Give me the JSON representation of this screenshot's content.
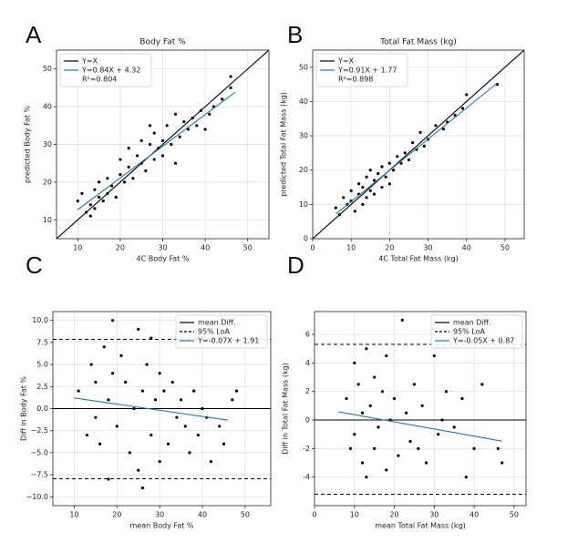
{
  "chart_data": [
    {
      "type": "scatter",
      "panel_label": "A",
      "title": "Body Fat %",
      "xlabel": "4C Body Fat %",
      "ylabel": "predicted Body Fat %",
      "xlim": [
        5,
        55
      ],
      "ylim": [
        5,
        55
      ],
      "xticks": [
        10,
        20,
        30,
        40,
        50
      ],
      "yticks": [
        10,
        20,
        30,
        40,
        50
      ],
      "grid": true,
      "legend": "upper left",
      "points": {
        "color": "#000000",
        "x": [
          10,
          11,
          12,
          13,
          13,
          14,
          14,
          15,
          15,
          16,
          17,
          17,
          18,
          19,
          20,
          20,
          21,
          22,
          22,
          23,
          24,
          25,
          25,
          26,
          27,
          27,
          28,
          28,
          29,
          30,
          30,
          31,
          32,
          33,
          33,
          34,
          35,
          36,
          37,
          38,
          39,
          40,
          41,
          42,
          44,
          46,
          46
        ],
        "y": [
          15,
          17,
          12,
          14,
          11,
          18,
          13,
          16,
          20,
          15,
          17,
          21,
          19,
          16,
          22,
          26,
          20,
          24,
          29,
          21,
          27,
          25,
          31,
          23,
          30,
          35,
          26,
          33,
          29,
          31,
          27,
          35,
          30,
          38,
          25,
          32,
          36,
          34,
          37,
          35,
          39,
          34,
          38,
          40,
          42,
          45,
          48
        ]
      },
      "hlines": [],
      "lines": [
        {
          "name": "Y=X",
          "color": "#000000",
          "dash": false,
          "x": [
            5,
            55
          ],
          "y": [
            5,
            55
          ]
        },
        {
          "name": "Y=0.84X + 4.32",
          "color": "#1f77b4",
          "dash": false,
          "x": [
            10,
            47
          ],
          "y": [
            12.7,
            43.8
          ]
        }
      ],
      "legend_text": [
        "R²=0.804"
      ]
    },
    {
      "type": "scatter",
      "panel_label": "B",
      "title": "Total Fat Mass (kg)",
      "xlabel": "4C Total Fat Mass (kg)",
      "ylabel": "predicted Total Fat Mass (kg)",
      "xlim": [
        0,
        55
      ],
      "ylim": [
        0,
        55
      ],
      "xticks": [
        0,
        10,
        20,
        30,
        40,
        50
      ],
      "yticks": [
        0,
        10,
        20,
        30,
        40,
        50
      ],
      "grid": true,
      "legend": "upper left",
      "points": {
        "color": "#000000",
        "x": [
          6,
          7,
          8,
          9,
          10,
          10,
          11,
          12,
          12,
          13,
          13,
          14,
          14,
          15,
          15,
          16,
          16,
          17,
          18,
          18,
          19,
          20,
          20,
          21,
          22,
          23,
          24,
          25,
          26,
          27,
          28,
          29,
          30,
          32,
          34,
          35,
          37,
          39,
          40,
          48
        ],
        "y": [
          9,
          7,
          12,
          10,
          11,
          14,
          8,
          13,
          16,
          10,
          15,
          12,
          18,
          14,
          20,
          13,
          17,
          19,
          15,
          21,
          18,
          16,
          22,
          20,
          24,
          22,
          25,
          23,
          28,
          26,
          31,
          27,
          29,
          33,
          32,
          34,
          36,
          38,
          42,
          45
        ]
      },
      "hlines": [],
      "lines": [
        {
          "name": "Y=X",
          "color": "#000000",
          "dash": false,
          "x": [
            0,
            55
          ],
          "y": [
            0,
            55
          ]
        },
        {
          "name": "Y=0.91X + 1.77",
          "color": "#1f77b4",
          "dash": false,
          "x": [
            6,
            48
          ],
          "y": [
            7.2,
            45.4
          ]
        }
      ],
      "legend_text": [
        "R²=0.898"
      ]
    },
    {
      "type": "scatter",
      "panel_label": "C",
      "xlabel": "mean Body Fat %",
      "ylabel": "Diff in Body Fat %",
      "xlim": [
        5,
        56
      ],
      "ylim": [
        -11,
        11
      ],
      "xticks": [
        10,
        20,
        30,
        40,
        50
      ],
      "yticks": [
        {
          "value": -10,
          "label": "−10.0"
        },
        {
          "value": -7.5,
          "label": "−7.5"
        },
        {
          "value": -5,
          "label": "−5.0"
        },
        {
          "value": -2.5,
          "label": "−2.5"
        },
        {
          "value": 0,
          "label": "0.0"
        },
        {
          "value": 2.5,
          "label": "2.5"
        },
        {
          "value": 5,
          "label": "5.0"
        },
        {
          "value": 7.5,
          "label": "7.5"
        },
        {
          "value": 10,
          "label": "10.0"
        }
      ],
      "grid": true,
      "legend": "upper right",
      "points": {
        "color": "#000000",
        "x": [
          11,
          13,
          14,
          15,
          15,
          16,
          17,
          18,
          18,
          19,
          19,
          20,
          21,
          22,
          23,
          24,
          25,
          25,
          26,
          26,
          27,
          28,
          28,
          29,
          30,
          30,
          31,
          32,
          33,
          34,
          35,
          36,
          37,
          38,
          39,
          40,
          41,
          42,
          44,
          45,
          47,
          48
        ],
        "y": [
          2,
          -3,
          5,
          -1,
          3,
          -4,
          7,
          -8,
          1,
          10,
          4,
          -2,
          6,
          3,
          -5,
          0,
          9,
          -7,
          2,
          -9,
          5,
          -3,
          8,
          1,
          -6,
          4,
          2,
          -4,
          3,
          -1,
          1,
          -2,
          -5,
          2,
          -3,
          0,
          -1,
          -6,
          -2,
          -4,
          1,
          2
        ]
      },
      "hlines": [
        {
          "name": "mean Diff.",
          "color": "#000000",
          "dash": false,
          "values": [
            0
          ]
        },
        {
          "name": "95% LoA",
          "color": "#000000",
          "dash": true,
          "values": [
            7.85,
            -7.95
          ]
        }
      ],
      "lines": [
        {
          "name": "Y=-0.07X + 1.91",
          "color": "#1f77b4",
          "dash": false,
          "x": [
            10,
            46
          ],
          "y": [
            1.21,
            -1.31
          ]
        }
      ],
      "legend_text": []
    },
    {
      "type": "scatter",
      "panel_label": "D",
      "xlabel": "mean Total Fat Mass (kg)",
      "ylabel": "Diff in Total Fat Mass (kg)",
      "xlim": [
        0,
        53
      ],
      "ylim": [
        -6,
        7.6
      ],
      "xticks": [
        0,
        10,
        20,
        30,
        40,
        50
      ],
      "yticks": [
        -4,
        -2,
        0,
        2,
        4,
        6
      ],
      "grid": true,
      "legend": "upper right",
      "points": {
        "color": "#000000",
        "x": [
          8,
          9,
          10,
          10,
          11,
          12,
          12,
          13,
          13,
          14,
          15,
          15,
          16,
          17,
          18,
          18,
          19,
          20,
          21,
          22,
          23,
          24,
          25,
          26,
          27,
          28,
          30,
          31,
          32,
          33,
          35,
          37,
          38,
          40,
          42,
          46,
          47
        ],
        "y": [
          1.5,
          -2,
          4,
          -1,
          2.5,
          -3,
          0.5,
          5,
          -4,
          1,
          3,
          -2,
          -0.5,
          2,
          -3.5,
          4.5,
          0,
          1.5,
          -2.5,
          7,
          0.5,
          -1.5,
          2.5,
          -2,
          1,
          -3,
          4.5,
          -1,
          0,
          2,
          -0.5,
          1.5,
          -4,
          -2,
          2.5,
          -2,
          -3
        ]
      },
      "hlines": [
        {
          "name": "mean Diff.",
          "color": "#000000",
          "dash": false,
          "values": [
            0
          ]
        },
        {
          "name": "95% LoA",
          "color": "#000000",
          "dash": true,
          "values": [
            5.3,
            -5.2
          ]
        }
      ],
      "lines": [
        {
          "name": "Y=-0.05X + 0.87",
          "color": "#1f77b4",
          "dash": false,
          "x": [
            6,
            47
          ],
          "y": [
            0.57,
            -1.48
          ]
        }
      ],
      "legend_text": []
    }
  ]
}
